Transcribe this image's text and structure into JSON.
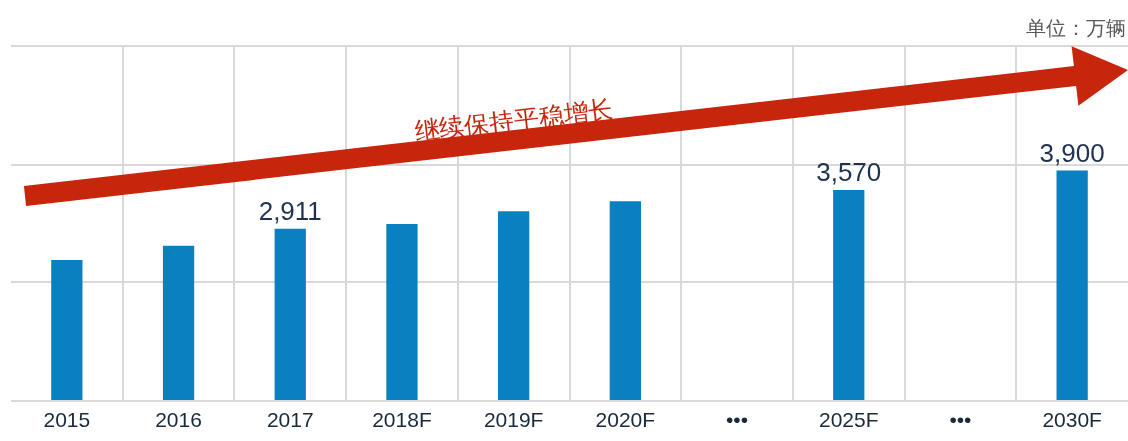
{
  "chart_data": {
    "type": "bar",
    "categories": [
      "2015",
      "2016",
      "2017",
      "2018F",
      "2019F",
      "2020F",
      "•••",
      "2025F",
      "•••",
      "2030F"
    ],
    "values": [
      2380,
      2620,
      2911,
      2990,
      3210,
      3380,
      null,
      3570,
      null,
      3900
    ],
    "value_labels": [
      null,
      null,
      "2,911",
      null,
      null,
      null,
      null,
      "3,570",
      null,
      "3,900"
    ],
    "color": "#0a80c0",
    "ylim": [
      0,
      6000
    ],
    "yticks": [
      {
        "value": 2000,
        "label": null
      },
      {
        "value": 4000,
        "label": null
      }
    ],
    "tick_labels": "x",
    "grid": true,
    "annotations": [
      "单位：万辆",
      "继续保持平稳增长"
    ]
  }
}
